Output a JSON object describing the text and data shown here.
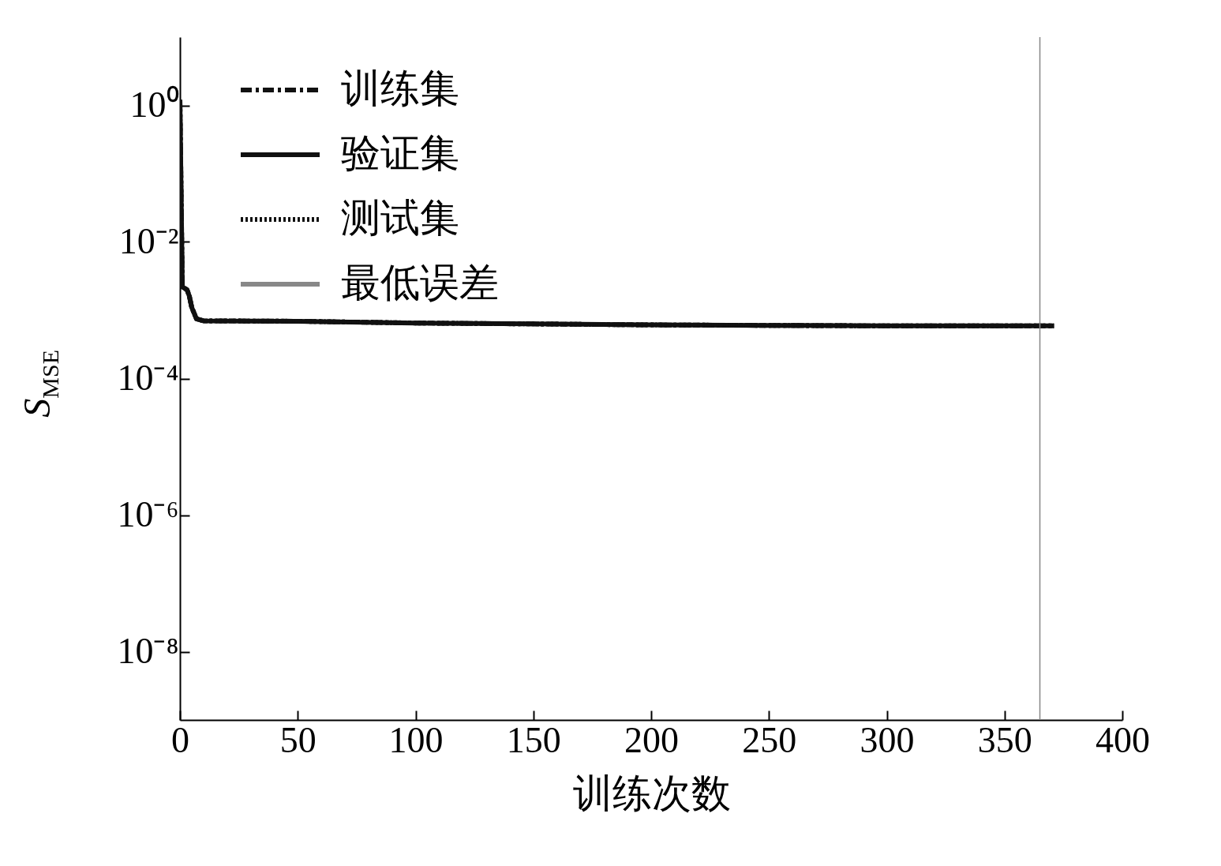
{
  "chart_data": {
    "type": "line",
    "xlabel": "训练次数",
    "ylabel": "S$_{MSE}$",
    "log": "y",
    "xlim": [
      0,
      400
    ],
    "xticks": [
      0,
      50,
      100,
      150,
      200,
      250,
      300,
      350,
      400
    ],
    "ylim": [
      1e-09,
      10
    ],
    "yticks": [
      {
        "value": 1,
        "label": "10⁰"
      },
      {
        "value": 0.01,
        "label": "10⁻²"
      },
      {
        "value": 0.0001,
        "label": "10⁻⁴"
      },
      {
        "value": 1e-06,
        "label": "10⁻⁶"
      },
      {
        "value": 1e-08,
        "label": "10⁻⁸"
      }
    ],
    "x": [
      0,
      1,
      3,
      4,
      5,
      7,
      10,
      50,
      100,
      150,
      200,
      250,
      300,
      371
    ],
    "series": [
      {
        "name": "训练集",
        "color": "#111111",
        "line_style": "dashed",
        "values": [
          1.2,
          0.0022,
          0.002,
          0.0016,
          0.0011,
          0.00075,
          0.0007,
          0.00069,
          0.00065,
          0.00063,
          0.00061,
          0.0006,
          0.00059,
          0.00059
        ]
      },
      {
        "name": "验证集",
        "color": "#111111",
        "line_style": "solid",
        "values": [
          1.2,
          0.0022,
          0.002,
          0.0016,
          0.0011,
          0.00075,
          0.0007,
          0.00069,
          0.00065,
          0.00063,
          0.00061,
          0.0006,
          0.00059,
          0.00059
        ]
      },
      {
        "name": "测试集",
        "color": "#111111",
        "line_style": "dotted",
        "values": [
          1.2,
          0.0022,
          0.002,
          0.0016,
          0.0011,
          0.00075,
          0.0007,
          0.00069,
          0.00065,
          0.00063,
          0.00061,
          0.0006,
          0.00059,
          0.00059
        ]
      },
      {
        "name": "最低误差",
        "color": "#888888",
        "line_style": "solid",
        "x": [
          365,
          365
        ],
        "values": [
          1e-09,
          10
        ]
      }
    ],
    "legend": "top left",
    "grid": false,
    "marker": "none"
  }
}
